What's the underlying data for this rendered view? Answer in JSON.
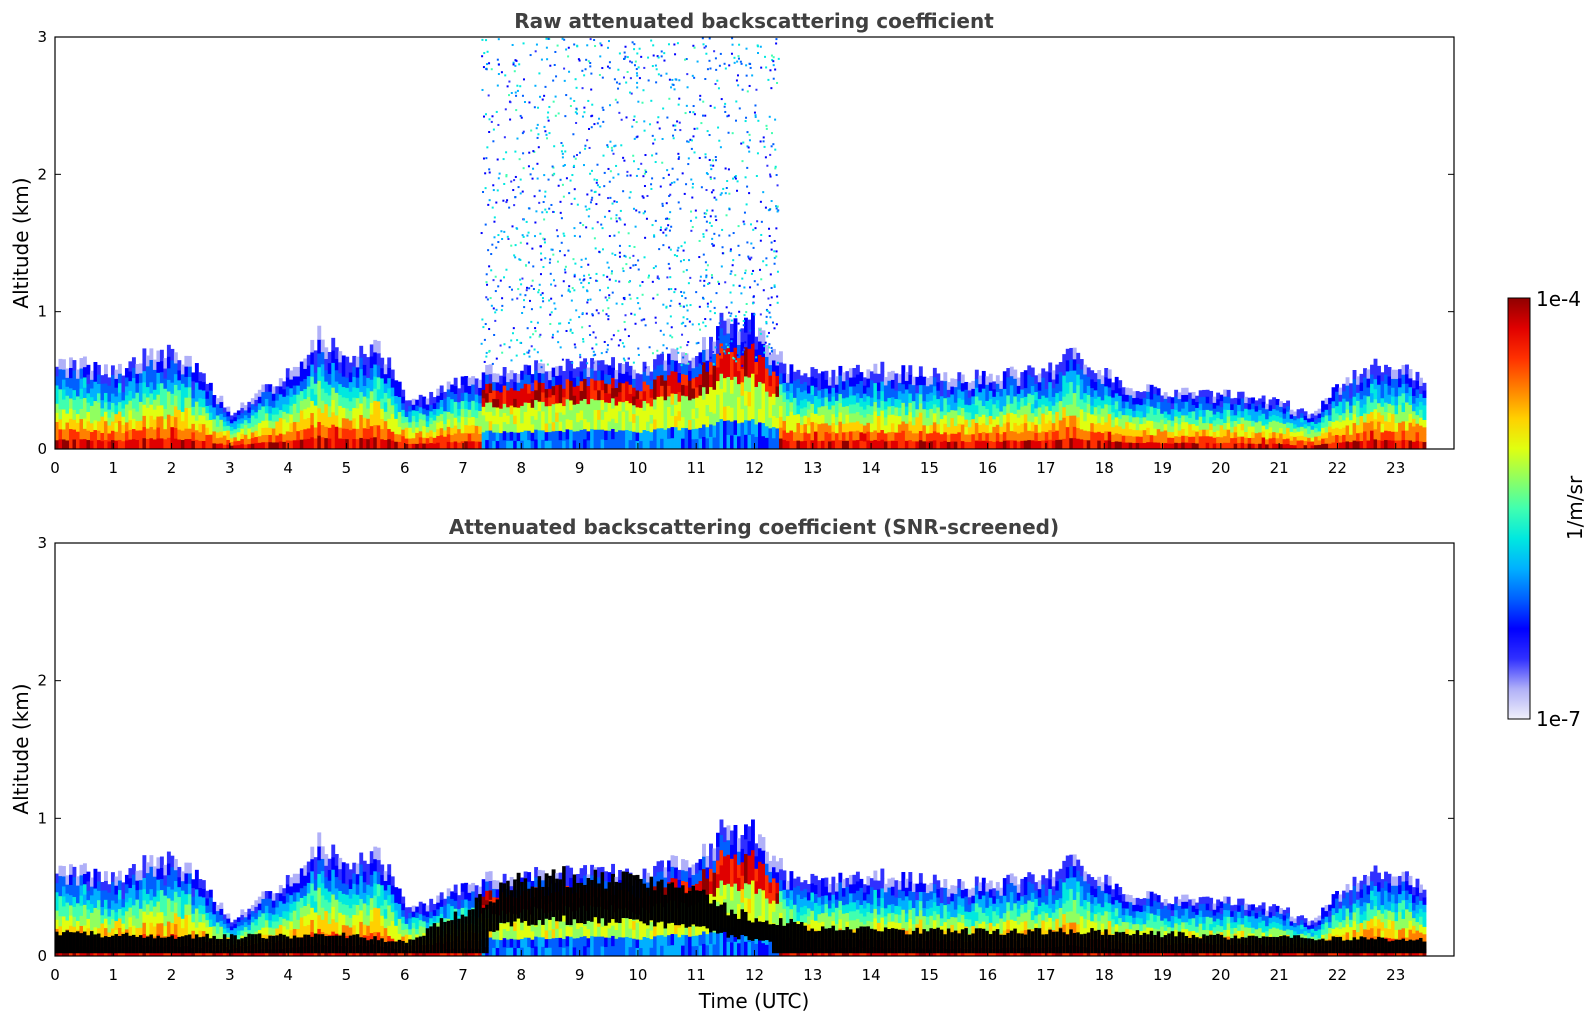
{
  "chart_data": [
    {
      "type": "heatmap",
      "title": "Raw attenuated backscattering coefficient",
      "ylabel": "Altitude (km)",
      "xlabel": "",
      "xlim": [
        0,
        24
      ],
      "ylim": [
        0,
        3
      ],
      "xticks": [
        "0",
        "1",
        "2",
        "3",
        "4",
        "5",
        "6",
        "7",
        "8",
        "9",
        "10",
        "11",
        "12",
        "13",
        "14",
        "15",
        "16",
        "17",
        "18",
        "19",
        "20",
        "21",
        "22",
        "23"
      ],
      "yticks": [
        "0",
        "1",
        "2",
        "3"
      ],
      "data_end_hour": 23.5,
      "layer_top_km": [
        [
          0,
          0.65
        ],
        [
          0.5,
          0.62
        ],
        [
          1,
          0.55
        ],
        [
          1.5,
          0.68
        ],
        [
          2,
          0.72
        ],
        [
          2.5,
          0.55
        ],
        [
          3,
          0.25
        ],
        [
          3.5,
          0.42
        ],
        [
          4,
          0.55
        ],
        [
          4.5,
          0.82
        ],
        [
          5,
          0.65
        ],
        [
          5.5,
          0.78
        ],
        [
          6,
          0.35
        ],
        [
          6.5,
          0.42
        ],
        [
          7,
          0.5
        ],
        [
          7.5,
          0.58
        ],
        [
          8,
          0.6
        ],
        [
          9,
          0.62
        ],
        [
          10,
          0.6
        ],
        [
          11,
          0.72
        ],
        [
          11.5,
          0.95
        ],
        [
          12,
          0.9
        ],
        [
          12.5,
          0.6
        ],
        [
          13,
          0.55
        ],
        [
          14,
          0.58
        ],
        [
          14.5,
          0.58
        ],
        [
          15,
          0.55
        ],
        [
          16,
          0.52
        ],
        [
          17,
          0.6
        ],
        [
          17.5,
          0.72
        ],
        [
          18,
          0.55
        ],
        [
          18.5,
          0.45
        ],
        [
          19,
          0.42
        ],
        [
          20,
          0.4
        ],
        [
          21,
          0.35
        ],
        [
          21.5,
          0.25
        ],
        [
          22,
          0.45
        ],
        [
          22.5,
          0.6
        ],
        [
          23,
          0.6
        ],
        [
          23.5,
          0.5
        ]
      ],
      "noise_region_hours": [
        7.3,
        12.4
      ],
      "noise_region_top_km": 3
    },
    {
      "type": "heatmap",
      "title": "Attenuated backscattering coefficient (SNR-screened)",
      "ylabel": "Altitude (km)",
      "xlabel": "Time (UTC)",
      "xlim": [
        0,
        24
      ],
      "ylim": [
        0,
        3
      ],
      "xticks": [
        "0",
        "1",
        "2",
        "3",
        "4",
        "5",
        "6",
        "7",
        "8",
        "9",
        "10",
        "11",
        "12",
        "13",
        "14",
        "15",
        "16",
        "17",
        "18",
        "19",
        "20",
        "21",
        "22",
        "23"
      ],
      "yticks": [
        "0",
        "1",
        "2",
        "3"
      ],
      "data_end_hour": 23.5,
      "screened_region_km": [
        [
          0,
          0.17
        ],
        [
          1,
          0.15
        ],
        [
          3,
          0.14
        ],
        [
          5,
          0.15
        ],
        [
          6,
          0.1
        ],
        [
          7.5,
          0.45
        ],
        [
          8,
          0.55
        ],
        [
          9,
          0.58
        ],
        [
          10,
          0.52
        ],
        [
          11,
          0.45
        ],
        [
          12,
          0.25
        ],
        [
          12.5,
          0.25
        ],
        [
          13,
          0.2
        ],
        [
          15,
          0.18
        ],
        [
          17,
          0.18
        ],
        [
          18,
          0.18
        ],
        [
          20,
          0.14
        ],
        [
          23.5,
          0.12
        ]
      ]
    }
  ],
  "colorbar": {
    "label": "1/m/sr",
    "max_label": "1e-4",
    "min_label": "1e-7",
    "colors": [
      "#f0f0fa",
      "#b0b0f8",
      "#3030ff",
      "#0000ff",
      "#0060ff",
      "#00b0ff",
      "#00e8e0",
      "#40ffb0",
      "#90ff60",
      "#e0ff10",
      "#ffd000",
      "#ff8000",
      "#ff3000",
      "#e00000",
      "#900000"
    ]
  },
  "colors": {
    "screened_black": "#000000",
    "title_gray": "#404040"
  }
}
